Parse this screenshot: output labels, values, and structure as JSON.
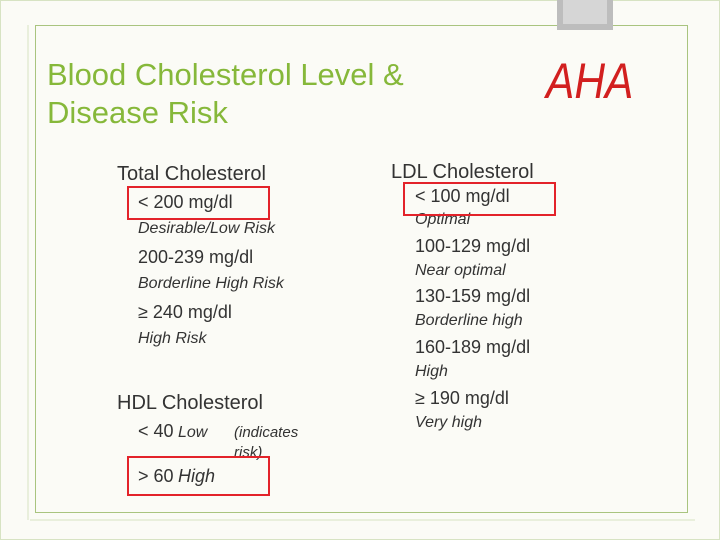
{
  "title": "Blood Cholesterol Level & Disease Risk",
  "badge": "AHA",
  "total_cholesterol": {
    "heading": "Total Cholesterol",
    "items": [
      {
        "range": "< 200 mg/dl",
        "risk": "Desirable/Low Risk"
      },
      {
        "range": "200-239 mg/dl",
        "risk": "Borderline High Risk"
      },
      {
        "range": "≥ 240 mg/dl",
        "risk": "High Risk"
      }
    ]
  },
  "hdl_cholesterol": {
    "heading": "HDL Cholesterol",
    "items": [
      {
        "range": "< 40",
        "risk": "Low",
        "note": "(indicates risk)"
      },
      {
        "range": "> 60",
        "risk": "High"
      }
    ]
  },
  "ldl_cholesterol": {
    "heading": "LDL Cholesterol",
    "items": [
      {
        "range": "< 100 mg/dl",
        "risk": "Optimal"
      },
      {
        "range": "100-129 mg/dl",
        "risk": "Near optimal"
      },
      {
        "range": "130-159 mg/dl",
        "risk": "Borderline high"
      },
      {
        "range": "160-189 mg/dl",
        "risk": "High"
      },
      {
        "range": "≥ 190 mg/dl",
        "risk": "Very high"
      }
    ]
  }
}
